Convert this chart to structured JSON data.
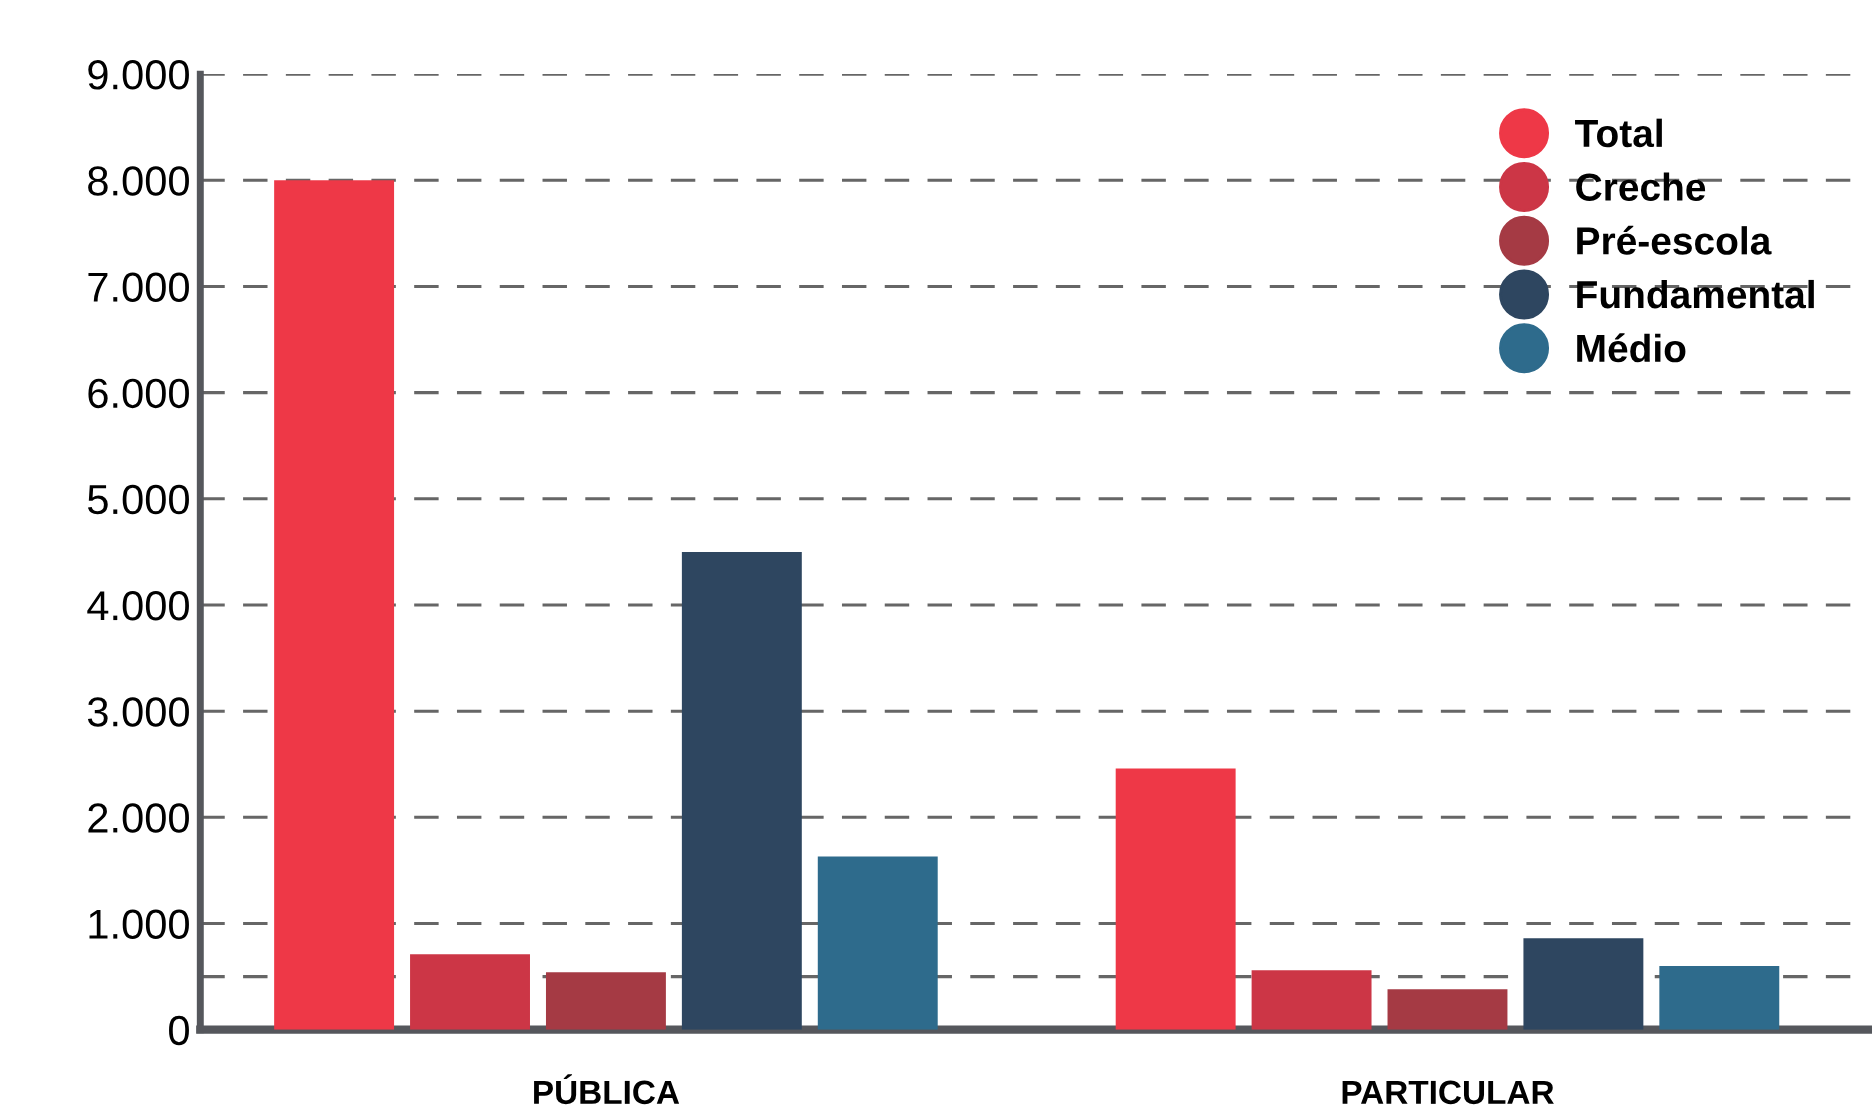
{
  "chart_data": {
    "type": "bar",
    "categories": [
      "PÚBLICA",
      "PARTICULAR"
    ],
    "series": [
      {
        "name": "Total",
        "color": "#ee3847",
        "values": [
          8000,
          2460
        ]
      },
      {
        "name": "Creche",
        "color": "#cc3646",
        "values": [
          710,
          560
        ]
      },
      {
        "name": "Pré-escola",
        "color": "#a53a44",
        "values": [
          540,
          380
        ]
      },
      {
        "name": "Fundamental",
        "color": "#2e4660",
        "values": [
          4500,
          860
        ]
      },
      {
        "name": "Médio",
        "color": "#2e6b8c",
        "values": [
          1630,
          600
        ]
      }
    ],
    "ylim": [
      0,
      9000
    ],
    "yticks": [
      0,
      {
        "value": 500,
        "label": null
      },
      {
        "value": 1000,
        "label": "1.000"
      },
      {
        "value": 2000,
        "label": "2.000"
      },
      {
        "value": 3000,
        "label": "3.000"
      },
      {
        "value": 4000,
        "label": "4.000"
      },
      {
        "value": 5000,
        "label": "5.000"
      },
      {
        "value": 6000,
        "label": "6.000"
      },
      {
        "value": 7000,
        "label": "7.000"
      },
      {
        "value": 8000,
        "label": "8.000"
      },
      {
        "value": 9000,
        "label": "9.000"
      }
    ],
    "grid": "y",
    "legend": "top right",
    "marker": "circle"
  }
}
